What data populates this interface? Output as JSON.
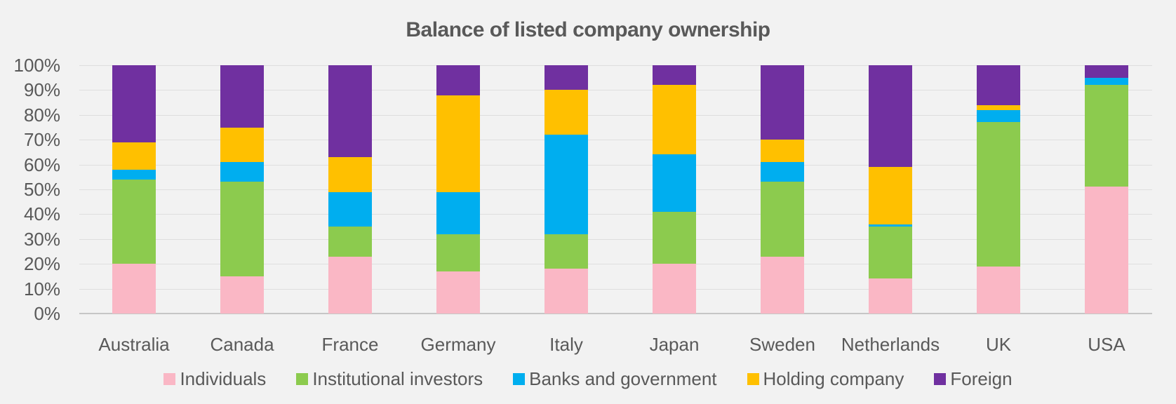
{
  "title": "Balance of listed company ownership",
  "colors": {
    "background": "#F2F2F2",
    "text": "#595959",
    "gridline": "#DEDEDE",
    "axis_line": "#C6C6C6"
  },
  "chart_data": {
    "type": "bar",
    "stacked": true,
    "title": "Balance of listed company ownership",
    "categories": [
      "Australia",
      "Canada",
      "France",
      "Germany",
      "Italy",
      "Japan",
      "Sweden",
      "Netherlands",
      "UK",
      "USA"
    ],
    "series": [
      {
        "name": "Individuals",
        "color": "#FAB7C5",
        "values": [
          20,
          15,
          23,
          17,
          18,
          20,
          23,
          14,
          19,
          51
        ]
      },
      {
        "name": "Institutional investors",
        "color": "#8CCB4E",
        "values": [
          34,
          38,
          12,
          15,
          14,
          21,
          30,
          21,
          58,
          41
        ]
      },
      {
        "name": "Banks and government",
        "color": "#00AEEF",
        "values": [
          4,
          8,
          14,
          17,
          40,
          23,
          8,
          1,
          5,
          3
        ]
      },
      {
        "name": "Holding company",
        "color": "#FFC000",
        "values": [
          11,
          14,
          14,
          39,
          18,
          28,
          9,
          23,
          2,
          0
        ]
      },
      {
        "name": "Foreign",
        "color": "#7030A0",
        "values": [
          31,
          25,
          37,
          12,
          10,
          8,
          30,
          41,
          16,
          5
        ]
      }
    ],
    "xlabel": "",
    "ylabel": "",
    "ylim": [
      0,
      100
    ],
    "ytick_step": 10,
    "ytick_labels": [
      "0%",
      "10%",
      "20%",
      "30%",
      "40%",
      "50%",
      "60%",
      "70%",
      "80%",
      "90%",
      "100%"
    ],
    "grid": true,
    "legend_position": "bottom"
  }
}
